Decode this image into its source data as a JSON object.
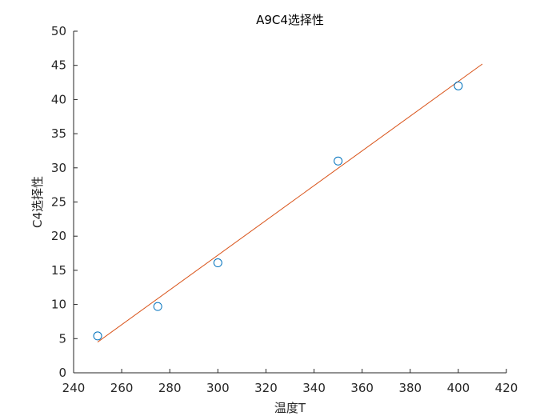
{
  "chart_data": {
    "type": "scatter",
    "title": "A9C4选择性",
    "xlabel": "温度T",
    "ylabel": "C4选择性",
    "xlim": [
      240,
      420
    ],
    "ylim": [
      0,
      50
    ],
    "xticks": [
      240,
      260,
      280,
      300,
      320,
      340,
      360,
      380,
      400,
      420
    ],
    "yticks": [
      0,
      5,
      10,
      15,
      20,
      25,
      30,
      35,
      40,
      45,
      50
    ],
    "grid": false,
    "series": [
      {
        "type": "scatter",
        "marker": "circle",
        "color": "#0072BD",
        "x": [
          250,
          275,
          300,
          350,
          400
        ],
        "y": [
          5.4,
          9.7,
          16.1,
          31.0,
          42.0
        ]
      },
      {
        "type": "line",
        "color": "#D95319",
        "x": [
          250,
          410
        ],
        "y": [
          4.5,
          45.2
        ]
      }
    ]
  }
}
